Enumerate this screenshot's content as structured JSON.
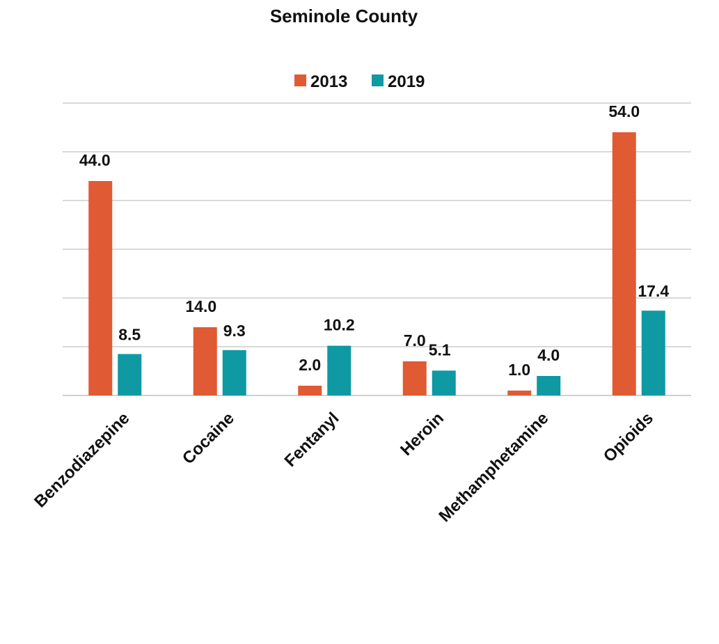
{
  "chart_data": {
    "type": "bar",
    "title": "Seminole County",
    "categories": [
      "Benzodiazepine",
      "Cocaine",
      "Fentanyl",
      "Heroin",
      "Methamphetamine",
      "Opioids"
    ],
    "series": [
      {
        "name": "2013",
        "values": [
          44.0,
          14.0,
          2.0,
          7.0,
          1.0,
          54.0
        ],
        "labels": [
          "44.0",
          "14.0",
          "2.0",
          "7.0",
          "1.0",
          "54.0"
        ],
        "color": "#e05a33"
      },
      {
        "name": "2019",
        "values": [
          8.5,
          9.3,
          10.2,
          5.1,
          4.0,
          17.4
        ],
        "labels": [
          "8.5",
          "9.3",
          "10.2",
          "5.1",
          "4.0",
          "17.4"
        ],
        "color": "#0e99a3"
      }
    ],
    "ylim": [
      0,
      60
    ],
    "gridlines": [
      0,
      10,
      20,
      30,
      40,
      50,
      60
    ],
    "grid": true,
    "legend_position": "top-center",
    "xlabel": "",
    "ylabel": ""
  }
}
